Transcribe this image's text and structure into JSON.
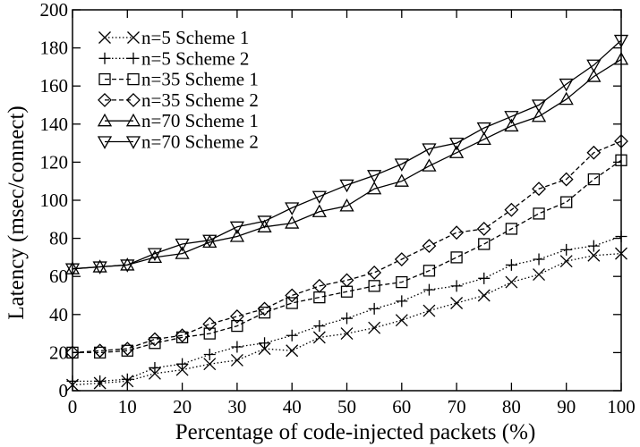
{
  "chart_data": {
    "type": "line",
    "xlabel": "Percentage of code-injected packets (%)",
    "ylabel": "Latency (msec/connect)",
    "xlim": [
      0,
      100
    ],
    "ylim": [
      0,
      200
    ],
    "x_ticks": [
      0,
      10,
      20,
      30,
      40,
      50,
      60,
      70,
      80,
      90,
      100
    ],
    "y_ticks": [
      0,
      20,
      40,
      60,
      80,
      100,
      120,
      140,
      160,
      180,
      200
    ],
    "legend_position": "top-left",
    "grid": false,
    "x": [
      0,
      5,
      10,
      15,
      20,
      25,
      30,
      35,
      40,
      45,
      50,
      55,
      60,
      65,
      70,
      75,
      80,
      85,
      90,
      95,
      100
    ],
    "series": [
      {
        "name": "n=5 Scheme 1",
        "marker": "x",
        "dash": "dotted",
        "values": [
          3,
          4,
          5,
          9,
          11,
          14,
          16,
          22,
          21,
          28,
          30,
          33,
          37,
          42,
          46,
          50,
          57,
          61,
          68,
          71,
          72
        ]
      },
      {
        "name": "n=5 Scheme 2",
        "marker": "plus",
        "dash": "dotted",
        "values": [
          5,
          5,
          6,
          12,
          14,
          19,
          23,
          25,
          29,
          34,
          38,
          43,
          47,
          53,
          55,
          59,
          66,
          69,
          74,
          76,
          81
        ]
      },
      {
        "name": "n=35 Scheme 1",
        "marker": "square",
        "dash": "dashed",
        "values": [
          20,
          20,
          21,
          25,
          28,
          30,
          34,
          41,
          46,
          49,
          52,
          55,
          57,
          63,
          70,
          77,
          85,
          93,
          99,
          111,
          121
        ]
      },
      {
        "name": "n=35 Scheme 2",
        "marker": "diamond",
        "dash": "dashed",
        "values": [
          20,
          21,
          22,
          27,
          29,
          35,
          39,
          43,
          50,
          55,
          58,
          62,
          69,
          76,
          83,
          85,
          95,
          106,
          111,
          125,
          131
        ]
      },
      {
        "name": "n=70 Scheme 1",
        "marker": "triangle-up",
        "dash": "solid",
        "values": [
          64,
          65,
          66,
          70,
          72,
          78,
          81,
          86,
          88,
          94,
          97,
          106,
          110,
          118,
          125,
          132,
          139,
          144,
          153,
          165,
          174
        ]
      },
      {
        "name": "n=70 Scheme 2",
        "marker": "triangle-down",
        "dash": "solid",
        "values": [
          64,
          65,
          66,
          72,
          77,
          79,
          86,
          89,
          96,
          102,
          108,
          113,
          119,
          127,
          130,
          138,
          144,
          150,
          161,
          171,
          184
        ]
      }
    ]
  }
}
